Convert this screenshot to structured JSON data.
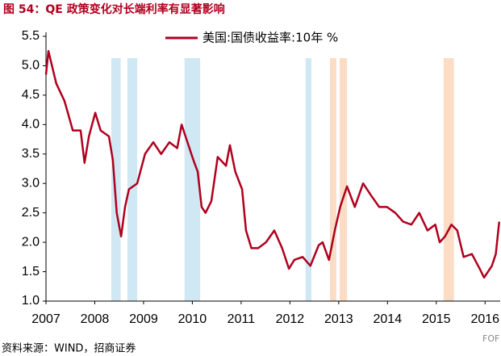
{
  "chart_data": {
    "type": "line",
    "title": "图 54：QE 政策变化对长端利率有显著影响",
    "source": "资料来源：WIND，招商证券",
    "watermark": "FOF",
    "x": [
      2007.0,
      2007.05,
      2007.21,
      2007.38,
      2007.55,
      2007.71,
      2007.79,
      2007.88,
      2008.01,
      2008.12,
      2008.29,
      2008.37,
      2008.45,
      2008.54,
      2008.62,
      2008.7,
      2008.87,
      2009.03,
      2009.2,
      2009.36,
      2009.53,
      2009.69,
      2009.78,
      2009.86,
      2010.02,
      2010.11,
      2010.19,
      2010.27,
      2010.39,
      2010.52,
      2010.69,
      2010.77,
      2010.88,
      2011.02,
      2011.1,
      2011.21,
      2011.35,
      2011.51,
      2011.68,
      2011.84,
      2011.98,
      2012.09,
      2012.26,
      2012.42,
      2012.59,
      2012.67,
      2012.8,
      2012.92,
      2013.03,
      2013.17,
      2013.33,
      2013.5,
      2013.66,
      2013.83,
      2013.99,
      2014.16,
      2014.32,
      2014.49,
      2014.65,
      2014.82,
      2014.98,
      2015.07,
      2015.18,
      2015.31,
      2015.43,
      2015.56,
      2015.73,
      2015.89,
      2015.98,
      2016.14,
      2016.22,
      2016.29
    ],
    "series": [
      {
        "name": "美国:国债收益率:10年 %",
        "color": "#b0001e",
        "values": [
          4.85,
          5.25,
          4.7,
          4.4,
          3.9,
          3.9,
          3.35,
          3.8,
          4.2,
          3.9,
          3.8,
          3.4,
          2.5,
          2.1,
          2.6,
          2.9,
          3.0,
          3.5,
          3.7,
          3.5,
          3.7,
          3.6,
          4.0,
          3.8,
          3.4,
          3.2,
          2.6,
          2.5,
          2.7,
          3.45,
          3.3,
          3.65,
          3.2,
          2.9,
          2.2,
          1.9,
          1.9,
          2.0,
          2.2,
          1.9,
          1.55,
          1.7,
          1.75,
          1.6,
          1.95,
          2.0,
          1.7,
          2.2,
          2.6,
          2.95,
          2.6,
          3.0,
          2.8,
          2.6,
          2.6,
          2.5,
          2.35,
          2.3,
          2.5,
          2.2,
          2.3,
          2.0,
          2.1,
          2.3,
          2.2,
          1.75,
          1.8,
          1.55,
          1.4,
          1.6,
          1.8,
          2.35
        ]
      }
    ],
    "shaded_regions": [
      {
        "x": [
          2008.34,
          2008.53
        ],
        "color": "#cfe8f3"
      },
      {
        "x": [
          2008.67,
          2008.87
        ],
        "color": "#cfe8f3"
      },
      {
        "x": [
          2009.84,
          2010.16
        ],
        "color": "#cfe8f3"
      },
      {
        "x": [
          2012.32,
          2012.44
        ],
        "color": "#cfe8f3"
      },
      {
        "x": [
          2012.82,
          2012.95
        ],
        "color": "#fbdcc4"
      },
      {
        "x": [
          2013.02,
          2013.17
        ],
        "color": "#fbdcc4"
      },
      {
        "x": [
          2015.15,
          2015.36
        ],
        "color": "#fbdcc4"
      }
    ],
    "xlim": [
      2007,
      2016.31
    ],
    "xticks": [
      2007,
      2008,
      2009,
      2010,
      2011,
      2012,
      2013,
      2014,
      2015,
      2016
    ],
    "ylim": [
      1,
      5.5
    ],
    "yticks": [
      {
        "value": 1,
        "label": "1.0"
      },
      1.5,
      {
        "value": 2,
        "label": "2.0"
      },
      2.5,
      {
        "value": 3,
        "label": "3.0"
      },
      3.5,
      {
        "value": 4,
        "label": "4.0"
      },
      4.5,
      {
        "value": 5,
        "label": "5.0"
      },
      5.5
    ],
    "grid": false
  }
}
